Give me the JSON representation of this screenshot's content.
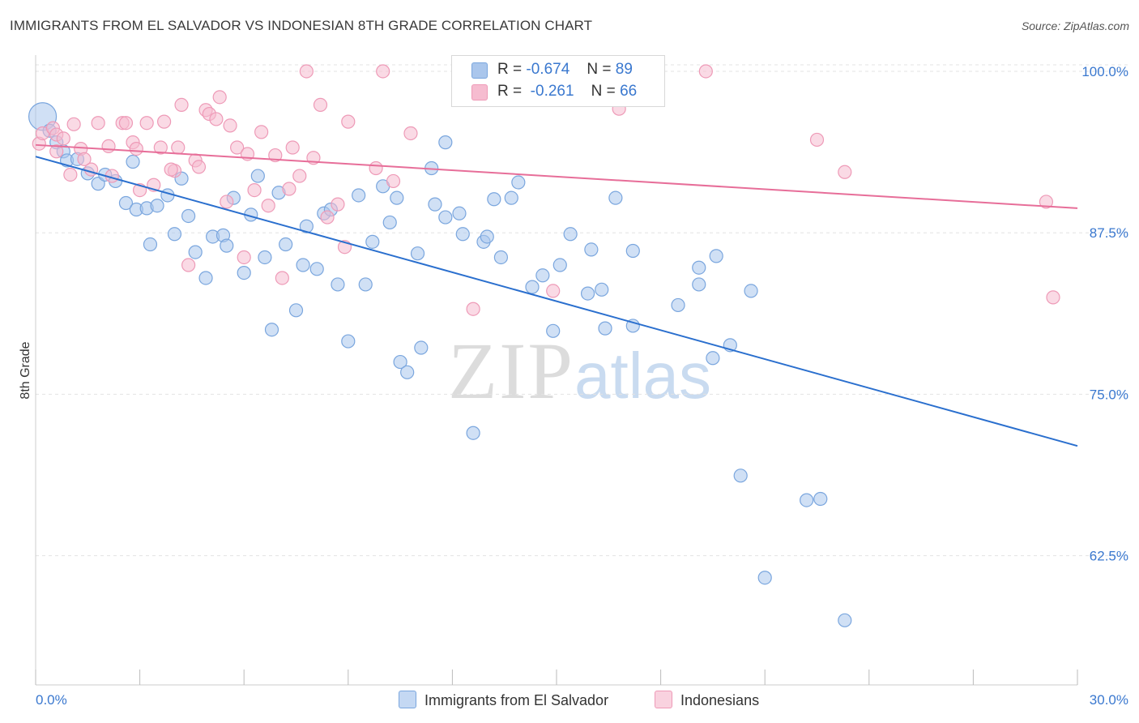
{
  "title": "IMMIGRANTS FROM EL SALVADOR VS INDONESIAN 8TH GRADE CORRELATION CHART",
  "source": "Source: ZipAtlas.com",
  "watermark": {
    "zip": "ZIP",
    "atlas": "atlas"
  },
  "legend": {
    "r_label": "R =",
    "n_label": "N =",
    "series": [
      {
        "r": "-0.674",
        "n": "89"
      },
      {
        "r": "-0.261",
        "n": "66"
      }
    ]
  },
  "colors": {
    "blue_fill": "#aac6ec",
    "blue_stroke": "#7aa6de",
    "blue_line": "#2a6fce",
    "pink_fill": "#f6bcd0",
    "pink_stroke": "#ee9ab7",
    "pink_line": "#e76e99",
    "tick_label": "#3a78cf",
    "grid": "#e3e3e3"
  },
  "chart_data": {
    "type": "scatter",
    "title": "IMMIGRANTS FROM EL SALVADOR VS INDONESIAN 8TH GRADE CORRELATION CHART",
    "xlabel": "",
    "ylabel": "8th Grade",
    "xlim": [
      0,
      30
    ],
    "ylim": [
      52.5,
      102
    ],
    "x_tick_labels": [
      "0.0%",
      "30.0%"
    ],
    "y_ticks": [
      62.5,
      75.0,
      87.5,
      100.0
    ],
    "y_tick_labels": [
      "62.5%",
      "75.0%",
      "87.5%",
      "100.0%"
    ],
    "grid": "horizontal dashed",
    "legend_placement": "top-center",
    "series": [
      {
        "name": "Immigrants from El Salvador",
        "trend": {
          "x": [
            0,
            30
          ],
          "y": [
            93.4,
            71.0
          ]
        },
        "points": [
          [
            0.2,
            96.5
          ],
          [
            0.4,
            95.4
          ],
          [
            0.6,
            94.5
          ],
          [
            0.8,
            93.8
          ],
          [
            0.9,
            93.1
          ],
          [
            1.2,
            93.2
          ],
          [
            1.5,
            92.1
          ],
          [
            1.8,
            91.3
          ],
          [
            2.0,
            92.0
          ],
          [
            2.3,
            91.5
          ],
          [
            2.6,
            89.8
          ],
          [
            2.8,
            93.0
          ],
          [
            2.9,
            89.3
          ],
          [
            3.2,
            89.4
          ],
          [
            3.5,
            89.6
          ],
          [
            3.3,
            86.6
          ],
          [
            3.8,
            90.4
          ],
          [
            4.0,
            87.4
          ],
          [
            4.2,
            91.7
          ],
          [
            4.4,
            88.8
          ],
          [
            4.6,
            86.0
          ],
          [
            4.9,
            84.0
          ],
          [
            5.1,
            87.2
          ],
          [
            5.4,
            87.3
          ],
          [
            5.5,
            86.5
          ],
          [
            5.7,
            90.2
          ],
          [
            6.0,
            84.4
          ],
          [
            6.2,
            88.9
          ],
          [
            6.4,
            91.9
          ],
          [
            6.6,
            85.6
          ],
          [
            6.8,
            80.0
          ],
          [
            7.0,
            90.6
          ],
          [
            7.2,
            86.6
          ],
          [
            7.5,
            81.5
          ],
          [
            7.7,
            85.0
          ],
          [
            7.8,
            88.0
          ],
          [
            8.1,
            84.7
          ],
          [
            8.3,
            89.0
          ],
          [
            8.5,
            89.3
          ],
          [
            8.7,
            83.5
          ],
          [
            9.0,
            79.1
          ],
          [
            9.3,
            90.4
          ],
          [
            9.5,
            83.5
          ],
          [
            9.7,
            86.8
          ],
          [
            10.0,
            91.1
          ],
          [
            10.2,
            88.3
          ],
          [
            10.4,
            90.2
          ],
          [
            10.5,
            77.5
          ],
          [
            10.7,
            76.7
          ],
          [
            11.0,
            85.9
          ],
          [
            11.1,
            78.6
          ],
          [
            11.4,
            92.5
          ],
          [
            11.5,
            89.7
          ],
          [
            11.8,
            94.5
          ],
          [
            11.8,
            88.7
          ],
          [
            12.2,
            89.0
          ],
          [
            12.3,
            87.4
          ],
          [
            12.6,
            72.0
          ],
          [
            12.9,
            86.8
          ],
          [
            13.0,
            87.2
          ],
          [
            13.2,
            90.1
          ],
          [
            13.4,
            85.6
          ],
          [
            13.7,
            90.2
          ],
          [
            13.9,
            91.4
          ],
          [
            14.3,
            83.3
          ],
          [
            14.6,
            84.2
          ],
          [
            14.9,
            79.9
          ],
          [
            15.1,
            85.0
          ],
          [
            15.4,
            87.4
          ],
          [
            15.9,
            82.8
          ],
          [
            16.1,
            98.3
          ],
          [
            16.3,
            83.1
          ],
          [
            16.4,
            80.1
          ],
          [
            16.7,
            90.2
          ],
          [
            17.2,
            80.3
          ],
          [
            17.2,
            86.1
          ],
          [
            18.5,
            81.9
          ],
          [
            19.1,
            83.5
          ],
          [
            19.1,
            84.8
          ],
          [
            19.5,
            77.8
          ],
          [
            19.6,
            85.7
          ],
          [
            20.0,
            78.8
          ],
          [
            20.3,
            68.7
          ],
          [
            20.6,
            83.0
          ],
          [
            21.0,
            60.8
          ],
          [
            22.2,
            66.8
          ],
          [
            22.6,
            66.9
          ],
          [
            23.3,
            57.5
          ],
          [
            16.0,
            86.2
          ]
        ]
      },
      {
        "name": "Indonesians",
        "trend": {
          "x": [
            0,
            30
          ],
          "y": [
            94.3,
            89.4
          ]
        },
        "points": [
          [
            0.1,
            94.4
          ],
          [
            0.2,
            95.2
          ],
          [
            0.5,
            95.6
          ],
          [
            0.6,
            95.1
          ],
          [
            0.8,
            94.8
          ],
          [
            1.0,
            92.0
          ],
          [
            1.1,
            95.9
          ],
          [
            1.3,
            94.0
          ],
          [
            1.6,
            92.4
          ],
          [
            1.8,
            96.0
          ],
          [
            2.1,
            94.2
          ],
          [
            2.2,
            91.9
          ],
          [
            2.5,
            96.0
          ],
          [
            2.6,
            96.0
          ],
          [
            2.8,
            94.5
          ],
          [
            3.0,
            90.8
          ],
          [
            3.2,
            96.0
          ],
          [
            3.4,
            91.2
          ],
          [
            3.6,
            94.1
          ],
          [
            3.7,
            96.1
          ],
          [
            4.0,
            92.3
          ],
          [
            4.1,
            94.1
          ],
          [
            4.2,
            97.4
          ],
          [
            4.4,
            85.0
          ],
          [
            4.6,
            93.1
          ],
          [
            4.7,
            92.6
          ],
          [
            4.9,
            97.0
          ],
          [
            5.0,
            96.7
          ],
          [
            5.2,
            96.3
          ],
          [
            5.3,
            98.0
          ],
          [
            5.6,
            95.8
          ],
          [
            5.8,
            94.1
          ],
          [
            6.1,
            93.6
          ],
          [
            6.3,
            90.8
          ],
          [
            6.5,
            95.3
          ],
          [
            6.7,
            89.6
          ],
          [
            6.9,
            93.5
          ],
          [
            7.1,
            84.0
          ],
          [
            7.3,
            90.9
          ],
          [
            7.6,
            91.9
          ],
          [
            7.8,
            100.0
          ],
          [
            8.0,
            93.3
          ],
          [
            8.2,
            97.4
          ],
          [
            8.4,
            88.7
          ],
          [
            8.7,
            89.7
          ],
          [
            8.9,
            86.4
          ],
          [
            9.0,
            96.1
          ],
          [
            10.0,
            100.0
          ],
          [
            10.3,
            91.5
          ],
          [
            10.8,
            95.2
          ],
          [
            12.6,
            81.6
          ],
          [
            14.9,
            83.0
          ],
          [
            16.8,
            97.1
          ],
          [
            19.3,
            100.0
          ],
          [
            22.5,
            94.7
          ],
          [
            23.3,
            92.2
          ],
          [
            29.1,
            89.9
          ],
          [
            29.3,
            82.5
          ],
          [
            6.0,
            85.6
          ],
          [
            3.9,
            92.4
          ],
          [
            2.9,
            94.0
          ],
          [
            1.4,
            93.2
          ],
          [
            5.5,
            89.9
          ],
          [
            7.4,
            94.1
          ],
          [
            9.8,
            92.5
          ],
          [
            0.6,
            93.8
          ]
        ]
      }
    ]
  }
}
